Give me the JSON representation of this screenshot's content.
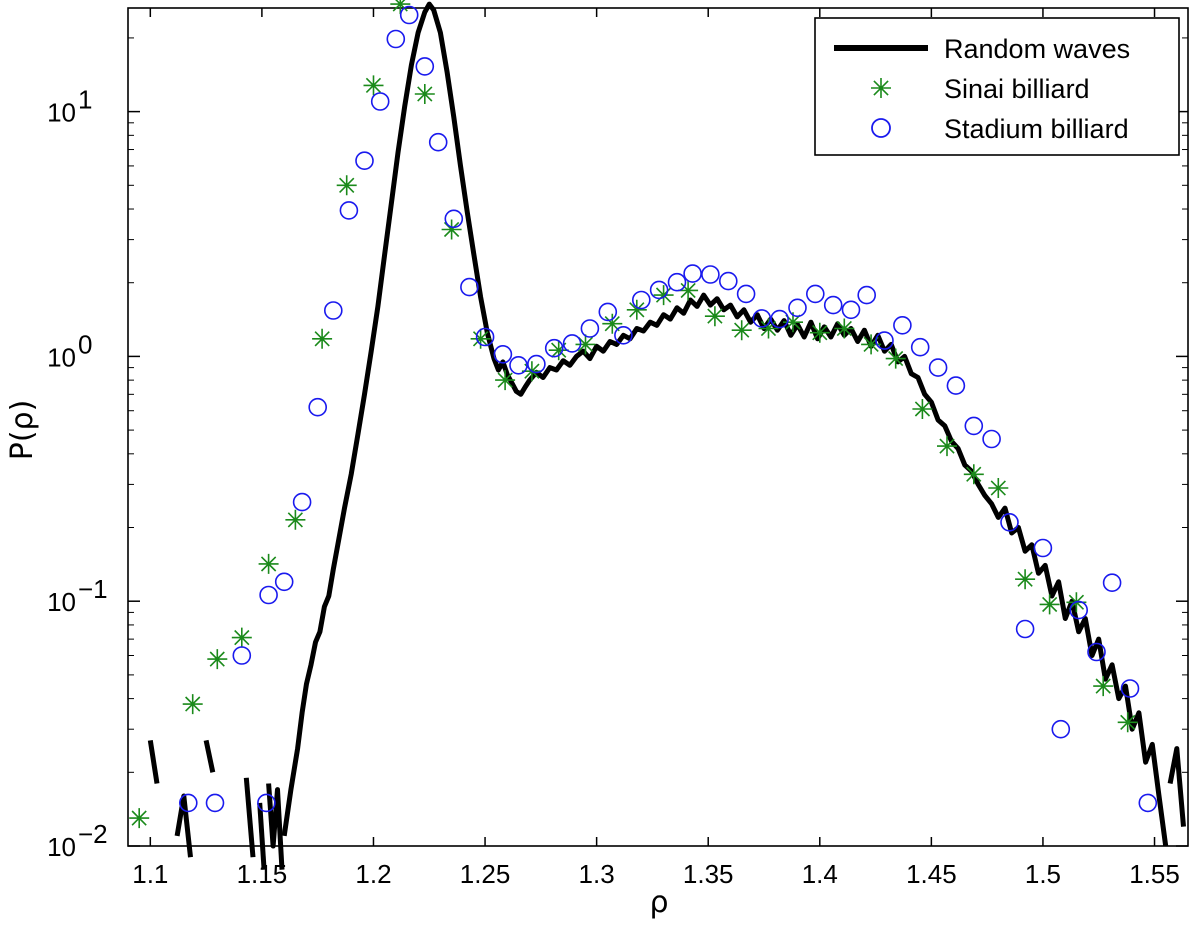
{
  "chart_data": {
    "type": "line",
    "title": "",
    "xlabel": "ρ",
    "ylabel": "P(ρ)",
    "xlim": [
      1.09,
      1.565
    ],
    "ylim": [
      0.01,
      28
    ],
    "yscale": "log",
    "x_ticks": [
      {
        "value": 1.1,
        "label": "1.1"
      },
      {
        "value": 1.15,
        "label": "1.15"
      },
      {
        "value": 1.2,
        "label": "1.2"
      },
      {
        "value": 1.25,
        "label": "1.25"
      },
      {
        "value": 1.3,
        "label": "1.3"
      },
      {
        "value": 1.35,
        "label": "1.35"
      },
      {
        "value": 1.4,
        "label": "1.4"
      },
      {
        "value": 1.45,
        "label": "1.45"
      },
      {
        "value": 1.5,
        "label": "1.5"
      },
      {
        "value": 1.55,
        "label": "1.55"
      }
    ],
    "y_ticks": [
      {
        "value": 0.01,
        "base": "10",
        "exp": "−2"
      },
      {
        "value": 0.1,
        "base": "10",
        "exp": "−1"
      },
      {
        "value": 1,
        "base": "10",
        "exp": "0"
      },
      {
        "value": 10,
        "base": "10",
        "exp": "1"
      }
    ],
    "legend_position": "top-right",
    "series": [
      {
        "name": "Random waves",
        "style": "line",
        "color": "#000000",
        "segments": [
          [
            [
              1.1,
              0.027
            ],
            [
              1.103,
              0.018
            ]
          ],
          [
            [
              1.112,
              0.011
            ],
            [
              1.115,
              0.016
            ],
            [
              1.118,
              0.009
            ]
          ],
          [
            [
              1.125,
              0.027
            ],
            [
              1.128,
              0.02
            ]
          ],
          [
            [
              1.143,
              0.019
            ],
            [
              1.146,
              0.009
            ]
          ],
          [
            [
              1.149,
              0.015
            ],
            [
              1.151,
              0.008
            ]
          ],
          [
            [
              1.153,
              0.018
            ],
            [
              1.155,
              0.01
            ],
            [
              1.157,
              0.017
            ],
            [
              1.159,
              0.008
            ]
          ],
          [
            [
              1.16,
              0.011
            ],
            [
              1.163,
              0.017
            ],
            [
              1.166,
              0.025
            ],
            [
              1.168,
              0.035
            ],
            [
              1.17,
              0.046
            ],
            [
              1.172,
              0.055
            ],
            [
              1.174,
              0.068
            ],
            [
              1.176,
              0.075
            ],
            [
              1.178,
              0.095
            ],
            [
              1.18,
              0.105
            ],
            [
              1.182,
              0.135
            ],
            [
              1.184,
              0.17
            ],
            [
              1.187,
              0.24
            ],
            [
              1.19,
              0.33
            ],
            [
              1.193,
              0.48
            ],
            [
              1.196,
              0.7
            ],
            [
              1.199,
              1.05
            ],
            [
              1.202,
              1.6
            ],
            [
              1.205,
              2.6
            ],
            [
              1.208,
              4.2
            ],
            [
              1.211,
              6.8
            ],
            [
              1.214,
              10.5
            ],
            [
              1.217,
              15.5
            ],
            [
              1.22,
              21.0
            ],
            [
              1.223,
              25.5
            ],
            [
              1.225,
              27.5
            ],
            [
              1.227,
              26.0
            ],
            [
              1.23,
              21.0
            ],
            [
              1.233,
              14.5
            ],
            [
              1.236,
              9.5
            ],
            [
              1.239,
              6.0
            ],
            [
              1.242,
              3.9
            ],
            [
              1.245,
              2.6
            ],
            [
              1.248,
              1.75
            ],
            [
              1.251,
              1.25
            ],
            [
              1.254,
              0.98
            ],
            [
              1.256,
              0.88
            ],
            [
              1.258,
              0.95
            ],
            [
              1.26,
              0.84
            ],
            [
              1.262,
              0.78
            ],
            [
              1.264,
              0.72
            ],
            [
              1.266,
              0.7
            ],
            [
              1.268,
              0.75
            ],
            [
              1.27,
              0.8
            ],
            [
              1.273,
              0.86
            ],
            [
              1.276,
              0.82
            ],
            [
              1.279,
              0.9
            ],
            [
              1.282,
              0.88
            ],
            [
              1.285,
              0.96
            ],
            [
              1.288,
              0.92
            ],
            [
              1.291,
              1.0
            ],
            [
              1.294,
              1.05
            ],
            [
              1.297,
              0.98
            ],
            [
              1.3,
              1.1
            ],
            [
              1.303,
              1.05
            ],
            [
              1.306,
              1.15
            ],
            [
              1.309,
              1.12
            ],
            [
              1.312,
              1.22
            ],
            [
              1.315,
              1.18
            ],
            [
              1.318,
              1.3
            ],
            [
              1.321,
              1.27
            ],
            [
              1.324,
              1.38
            ],
            [
              1.327,
              1.34
            ],
            [
              1.33,
              1.48
            ],
            [
              1.333,
              1.42
            ],
            [
              1.336,
              1.58
            ],
            [
              1.339,
              1.5
            ],
            [
              1.342,
              1.7
            ],
            [
              1.345,
              1.6
            ],
            [
              1.348,
              1.78
            ],
            [
              1.351,
              1.62
            ],
            [
              1.354,
              1.72
            ],
            [
              1.357,
              1.55
            ],
            [
              1.36,
              1.62
            ],
            [
              1.363,
              1.45
            ],
            [
              1.366,
              1.55
            ],
            [
              1.369,
              1.38
            ],
            [
              1.372,
              1.48
            ],
            [
              1.375,
              1.3
            ],
            [
              1.378,
              1.42
            ],
            [
              1.381,
              1.28
            ],
            [
              1.384,
              1.4
            ],
            [
              1.387,
              1.22
            ],
            [
              1.39,
              1.35
            ],
            [
              1.393,
              1.2
            ],
            [
              1.396,
              1.38
            ],
            [
              1.399,
              1.18
            ],
            [
              1.402,
              1.32
            ],
            [
              1.405,
              1.2
            ],
            [
              1.408,
              1.36
            ],
            [
              1.411,
              1.22
            ],
            [
              1.414,
              1.3
            ],
            [
              1.417,
              1.15
            ],
            [
              1.42,
              1.28
            ],
            [
              1.423,
              1.1
            ],
            [
              1.426,
              1.22
            ],
            [
              1.429,
              1.05
            ],
            [
              1.432,
              1.12
            ],
            [
              1.435,
              0.95
            ],
            [
              1.438,
              1.0
            ],
            [
              1.441,
              0.85
            ],
            [
              1.444,
              0.82
            ],
            [
              1.447,
              0.7
            ],
            [
              1.45,
              0.65
            ],
            [
              1.453,
              0.55
            ],
            [
              1.456,
              0.52
            ],
            [
              1.459,
              0.45
            ],
            [
              1.462,
              0.42
            ],
            [
              1.465,
              0.36
            ],
            [
              1.468,
              0.34
            ],
            [
              1.471,
              0.3
            ],
            [
              1.474,
              0.27
            ],
            [
              1.477,
              0.25
            ],
            [
              1.48,
              0.22
            ],
            [
              1.483,
              0.24
            ],
            [
              1.486,
              0.19
            ],
            [
              1.489,
              0.2
            ],
            [
              1.492,
              0.16
            ],
            [
              1.495,
              0.17
            ],
            [
              1.498,
              0.13
            ],
            [
              1.501,
              0.14
            ],
            [
              1.504,
              0.105
            ],
            [
              1.507,
              0.12
            ],
            [
              1.51,
              0.085
            ],
            [
              1.513,
              0.1
            ],
            [
              1.516,
              0.075
            ],
            [
              1.519,
              0.085
            ],
            [
              1.522,
              0.06
            ],
            [
              1.525,
              0.07
            ],
            [
              1.528,
              0.048
            ],
            [
              1.531,
              0.055
            ],
            [
              1.534,
              0.04
            ],
            [
              1.537,
              0.045
            ],
            [
              1.54,
              0.03
            ],
            [
              1.543,
              0.035
            ],
            [
              1.546,
              0.022
            ],
            [
              1.549,
              0.026
            ],
            [
              1.552,
              0.016
            ],
            [
              1.555,
              0.01
            ]
          ],
          [
            [
              1.557,
              0.018
            ],
            [
              1.56,
              0.025
            ],
            [
              1.563,
              0.012
            ]
          ]
        ]
      },
      {
        "name": "Sinai billiard",
        "style": "star",
        "color": "#1b8a1b",
        "points": [
          [
            1.095,
            0.013
          ],
          [
            1.119,
            0.038
          ],
          [
            1.13,
            0.058
          ],
          [
            1.141,
            0.071
          ],
          [
            1.153,
            0.142
          ],
          [
            1.165,
            0.215
          ],
          [
            1.177,
            1.18
          ],
          [
            1.188,
            5.0
          ],
          [
            1.2,
            12.8
          ],
          [
            1.212,
            27.5
          ],
          [
            1.223,
            11.8
          ],
          [
            1.235,
            3.3
          ],
          [
            1.248,
            1.18
          ],
          [
            1.259,
            0.8
          ],
          [
            1.271,
            0.87
          ],
          [
            1.283,
            1.06
          ],
          [
            1.295,
            1.12
          ],
          [
            1.307,
            1.36
          ],
          [
            1.318,
            1.55
          ],
          [
            1.33,
            1.78
          ],
          [
            1.341,
            1.86
          ],
          [
            1.353,
            1.46
          ],
          [
            1.365,
            1.28
          ],
          [
            1.377,
            1.3
          ],
          [
            1.388,
            1.38
          ],
          [
            1.4,
            1.25
          ],
          [
            1.411,
            1.3
          ],
          [
            1.423,
            1.12
          ],
          [
            1.434,
            0.98
          ],
          [
            1.446,
            0.61
          ],
          [
            1.457,
            0.43
          ],
          [
            1.469,
            0.33
          ],
          [
            1.48,
            0.29
          ],
          [
            1.492,
            0.123
          ],
          [
            1.503,
            0.097
          ],
          [
            1.515,
            0.099
          ],
          [
            1.527,
            0.045
          ],
          [
            1.538,
            0.032
          ]
        ]
      },
      {
        "name": "Stadium billiard",
        "style": "circle",
        "color": "#1a1aee",
        "points": [
          [
            1.117,
            0.015
          ],
          [
            1.129,
            0.015
          ],
          [
            1.141,
            0.06
          ],
          [
            1.152,
            0.015
          ],
          [
            1.153,
            0.106
          ],
          [
            1.16,
            0.12
          ],
          [
            1.168,
            0.254
          ],
          [
            1.175,
            0.62
          ],
          [
            1.182,
            1.54
          ],
          [
            1.189,
            3.95
          ],
          [
            1.196,
            6.3
          ],
          [
            1.203,
            11.0
          ],
          [
            1.21,
            19.8
          ],
          [
            1.216,
            24.8
          ],
          [
            1.223,
            15.3
          ],
          [
            1.229,
            7.5
          ],
          [
            1.236,
            3.65
          ],
          [
            1.243,
            1.92
          ],
          [
            1.25,
            1.2
          ],
          [
            1.258,
            1.02
          ],
          [
            1.265,
            0.92
          ],
          [
            1.273,
            0.93
          ],
          [
            1.281,
            1.08
          ],
          [
            1.289,
            1.13
          ],
          [
            1.297,
            1.3
          ],
          [
            1.305,
            1.52
          ],
          [
            1.312,
            1.22
          ],
          [
            1.32,
            1.7
          ],
          [
            1.328,
            1.87
          ],
          [
            1.336,
            2.01
          ],
          [
            1.343,
            2.18
          ],
          [
            1.351,
            2.16
          ],
          [
            1.359,
            2.03
          ],
          [
            1.367,
            1.8
          ],
          [
            1.374,
            1.43
          ],
          [
            1.382,
            1.42
          ],
          [
            1.39,
            1.58
          ],
          [
            1.398,
            1.8
          ],
          [
            1.406,
            1.62
          ],
          [
            1.414,
            1.55
          ],
          [
            1.421,
            1.78
          ],
          [
            1.429,
            1.16
          ],
          [
            1.437,
            1.34
          ],
          [
            1.445,
            1.09
          ],
          [
            1.453,
            0.9
          ],
          [
            1.461,
            0.76
          ],
          [
            1.469,
            0.52
          ],
          [
            1.477,
            0.46
          ],
          [
            1.485,
            0.21
          ],
          [
            1.492,
            0.077
          ],
          [
            1.5,
            0.165
          ],
          [
            1.508,
            0.03
          ],
          [
            1.516,
            0.092
          ],
          [
            1.524,
            0.062
          ],
          [
            1.531,
            0.119
          ],
          [
            1.539,
            0.044
          ],
          [
            1.547,
            0.015
          ]
        ]
      }
    ]
  }
}
